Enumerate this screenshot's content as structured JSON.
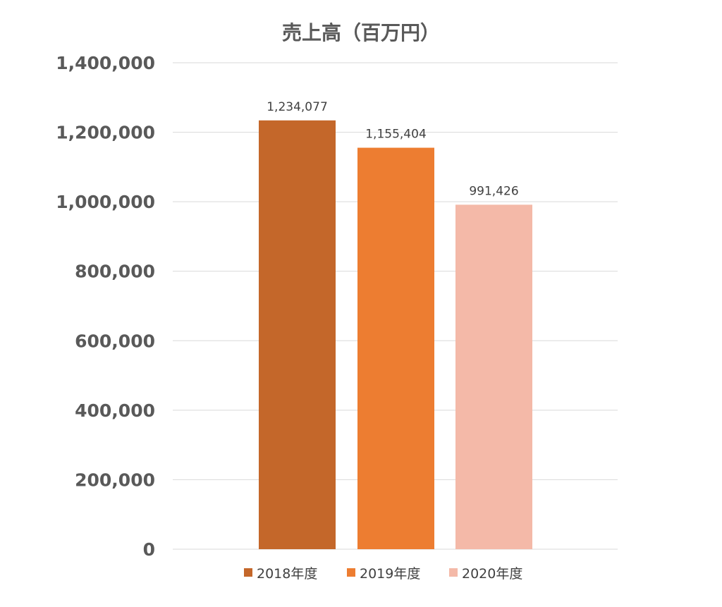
{
  "chart_data": {
    "type": "bar",
    "title": "売上高（百万円）",
    "categories": [
      "2018年度",
      "2019年度",
      "2020年度"
    ],
    "values": [
      1234077,
      1155404,
      991426
    ],
    "data_labels": [
      "1,234,077",
      "1,155,404",
      "991,426"
    ],
    "colors": [
      "#C4672A",
      "#ED7D31",
      "#F4B9A8"
    ],
    "ylim": [
      0,
      1400000
    ],
    "y_ticks": [
      0,
      200000,
      400000,
      600000,
      800000,
      1000000,
      1200000,
      1400000
    ],
    "y_tick_labels": [
      "0",
      "200,000",
      "400,000",
      "600,000",
      "800,000",
      "1,000,000",
      "1,200,000",
      "1,400,000"
    ],
    "xlabel": "",
    "ylabel": "",
    "grid": true,
    "legend": {
      "position": "bottom",
      "entries": [
        "2018年度",
        "2019年度",
        "2020年度"
      ]
    }
  }
}
